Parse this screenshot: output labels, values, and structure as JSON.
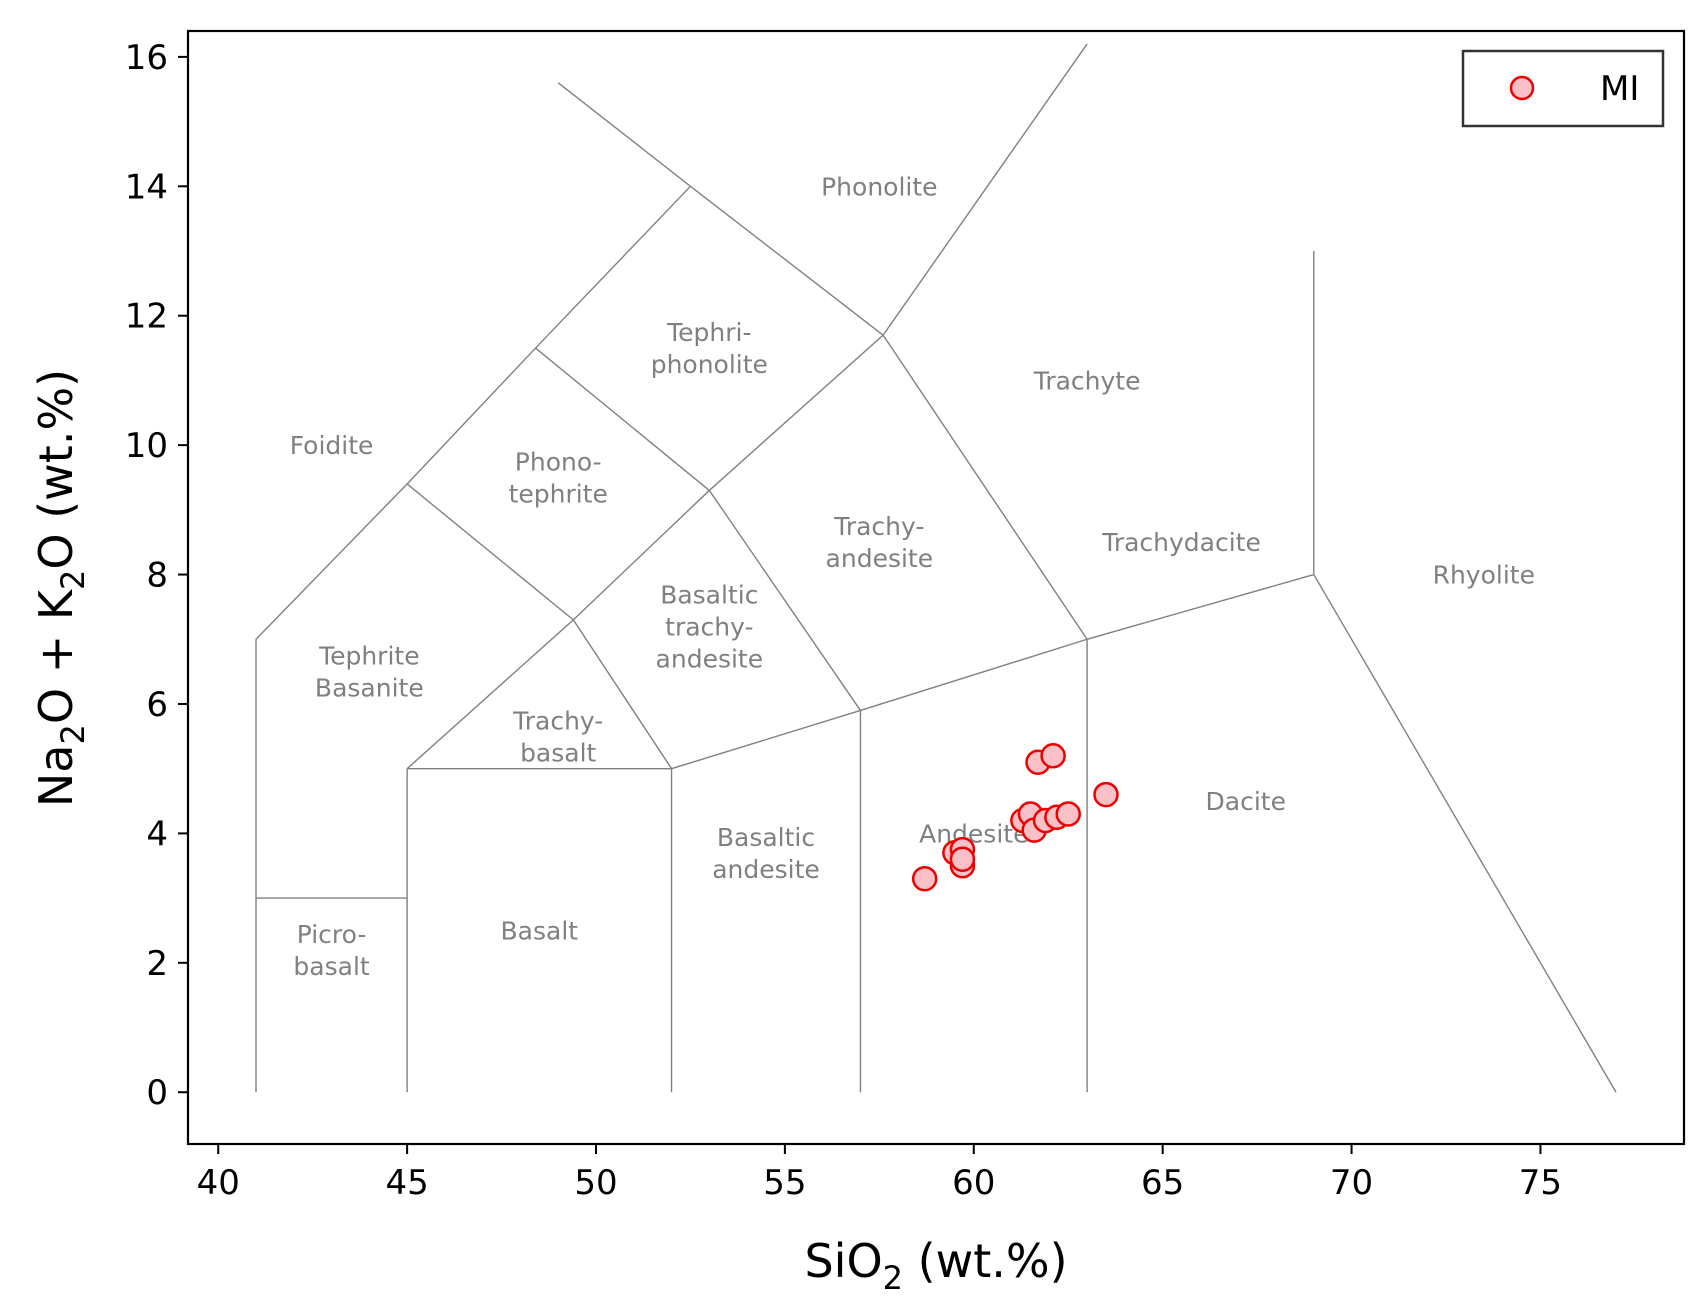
{
  "chart_data": {
    "type": "scatter",
    "title": "",
    "xlabel": {
      "main": "SiO",
      "sub": "2",
      "tail": " (wt.%)"
    },
    "ylabel": {
      "a": "Na",
      "a_sub": "2",
      "b": "O + K",
      "b_sub": "2",
      "c": "O (wt.%)"
    },
    "xlim": [
      39.2,
      78.8
    ],
    "ylim": [
      -0.8,
      16.4
    ],
    "x_ticks": [
      40,
      45,
      50,
      55,
      60,
      65,
      70,
      75
    ],
    "y_ticks": [
      0,
      2,
      4,
      6,
      8,
      10,
      12,
      14,
      16
    ],
    "grid": false,
    "legend_position": "top-right",
    "series": [
      {
        "name": "MI",
        "marker": "circle",
        "face_color": "#f9c0c8",
        "edge_color": "#ee0000",
        "points": [
          {
            "x": 58.7,
            "y": 3.3
          },
          {
            "x": 59.5,
            "y": 3.7
          },
          {
            "x": 59.7,
            "y": 3.75
          },
          {
            "x": 59.7,
            "y": 3.5
          },
          {
            "x": 59.7,
            "y": 3.6
          },
          {
            "x": 61.3,
            "y": 4.2
          },
          {
            "x": 61.5,
            "y": 4.3
          },
          {
            "x": 61.6,
            "y": 4.05
          },
          {
            "x": 61.7,
            "y": 5.1
          },
          {
            "x": 61.9,
            "y": 4.2
          },
          {
            "x": 62.1,
            "y": 5.2
          },
          {
            "x": 62.2,
            "y": 4.25
          },
          {
            "x": 62.5,
            "y": 4.3
          },
          {
            "x": 63.5,
            "y": 4.6
          }
        ]
      }
    ],
    "tas_boundaries": [
      [
        [
          41,
          0
        ],
        [
          41,
          7
        ]
      ],
      [
        [
          41,
          7
        ],
        [
          45,
          9.4
        ]
      ],
      [
        [
          45,
          9.4
        ],
        [
          48.4,
          11.5
        ]
      ],
      [
        [
          48.4,
          11.5
        ],
        [
          52.5,
          14
        ]
      ],
      [
        [
          52.5,
          14
        ],
        [
          49,
          15.6
        ]
      ],
      [
        [
          41,
          3
        ],
        [
          45,
          3
        ]
      ],
      [
        [
          45,
          0
        ],
        [
          45,
          5
        ]
      ],
      [
        [
          45,
          5
        ],
        [
          52,
          5
        ]
      ],
      [
        [
          52,
          0
        ],
        [
          52,
          5
        ]
      ],
      [
        [
          45,
          5
        ],
        [
          49.4,
          7.3
        ]
      ],
      [
        [
          49.4,
          7.3
        ],
        [
          52,
          5
        ]
      ],
      [
        [
          45,
          9.4
        ],
        [
          49.4,
          7.3
        ]
      ],
      [
        [
          49.4,
          7.3
        ],
        [
          53,
          9.3
        ]
      ],
      [
        [
          53,
          9.3
        ],
        [
          57.6,
          11.7
        ]
      ],
      [
        [
          57.6,
          11.7
        ],
        [
          52.5,
          14
        ]
      ],
      [
        [
          48.4,
          11.5
        ],
        [
          53,
          9.3
        ]
      ],
      [
        [
          52,
          5
        ],
        [
          57,
          5.9
        ]
      ],
      [
        [
          57,
          0
        ],
        [
          57,
          5.9
        ]
      ],
      [
        [
          57,
          5.9
        ],
        [
          63,
          7
        ]
      ],
      [
        [
          63,
          0
        ],
        [
          63,
          7
        ]
      ],
      [
        [
          53,
          9.3
        ],
        [
          57,
          5.9
        ]
      ],
      [
        [
          57.6,
          11.7
        ],
        [
          63,
          7
        ]
      ],
      [
        [
          57.6,
          11.7
        ],
        [
          63,
          16.2
        ]
      ],
      [
        [
          63,
          7
        ],
        [
          69,
          8
        ]
      ],
      [
        [
          69,
          8
        ],
        [
          69,
          13
        ]
      ],
      [
        [
          69,
          8
        ],
        [
          77,
          0
        ]
      ]
    ],
    "field_labels": [
      {
        "lines": [
          "Phonolite"
        ],
        "x": 57.5,
        "y": 14.0
      },
      {
        "lines": [
          "Tephri-",
          "phonolite"
        ],
        "x": 53.0,
        "y": 11.5
      },
      {
        "lines": [
          "Foidite"
        ],
        "x": 43.0,
        "y": 10.0
      },
      {
        "lines": [
          "Phono-",
          "tephrite"
        ],
        "x": 49.0,
        "y": 9.5
      },
      {
        "lines": [
          "Trachyte"
        ],
        "x": 63.0,
        "y": 11.0
      },
      {
        "lines": [
          "Trachy-",
          "andesite"
        ],
        "x": 57.5,
        "y": 8.5
      },
      {
        "lines": [
          "Trachydacite"
        ],
        "x": 65.5,
        "y": 8.5
      },
      {
        "lines": [
          "Rhyolite"
        ],
        "x": 73.5,
        "y": 8.0
      },
      {
        "lines": [
          "Tephrite",
          "Basanite"
        ],
        "x": 44.0,
        "y": 6.5
      },
      {
        "lines": [
          "Basaltic",
          "trachy-",
          "andesite"
        ],
        "x": 53.0,
        "y": 7.2
      },
      {
        "lines": [
          "Trachy-",
          "basalt"
        ],
        "x": 49.0,
        "y": 5.5
      },
      {
        "lines": [
          "Andesite"
        ],
        "x": 60.0,
        "y": 4.0
      },
      {
        "lines": [
          "Dacite"
        ],
        "x": 67.2,
        "y": 4.5
      },
      {
        "lines": [
          "Basaltic",
          "andesite"
        ],
        "x": 54.5,
        "y": 3.7
      },
      {
        "lines": [
          "Basalt"
        ],
        "x": 48.5,
        "y": 2.5
      },
      {
        "lines": [
          "Picro-",
          "basalt"
        ],
        "x": 43.0,
        "y": 2.2
      }
    ]
  }
}
